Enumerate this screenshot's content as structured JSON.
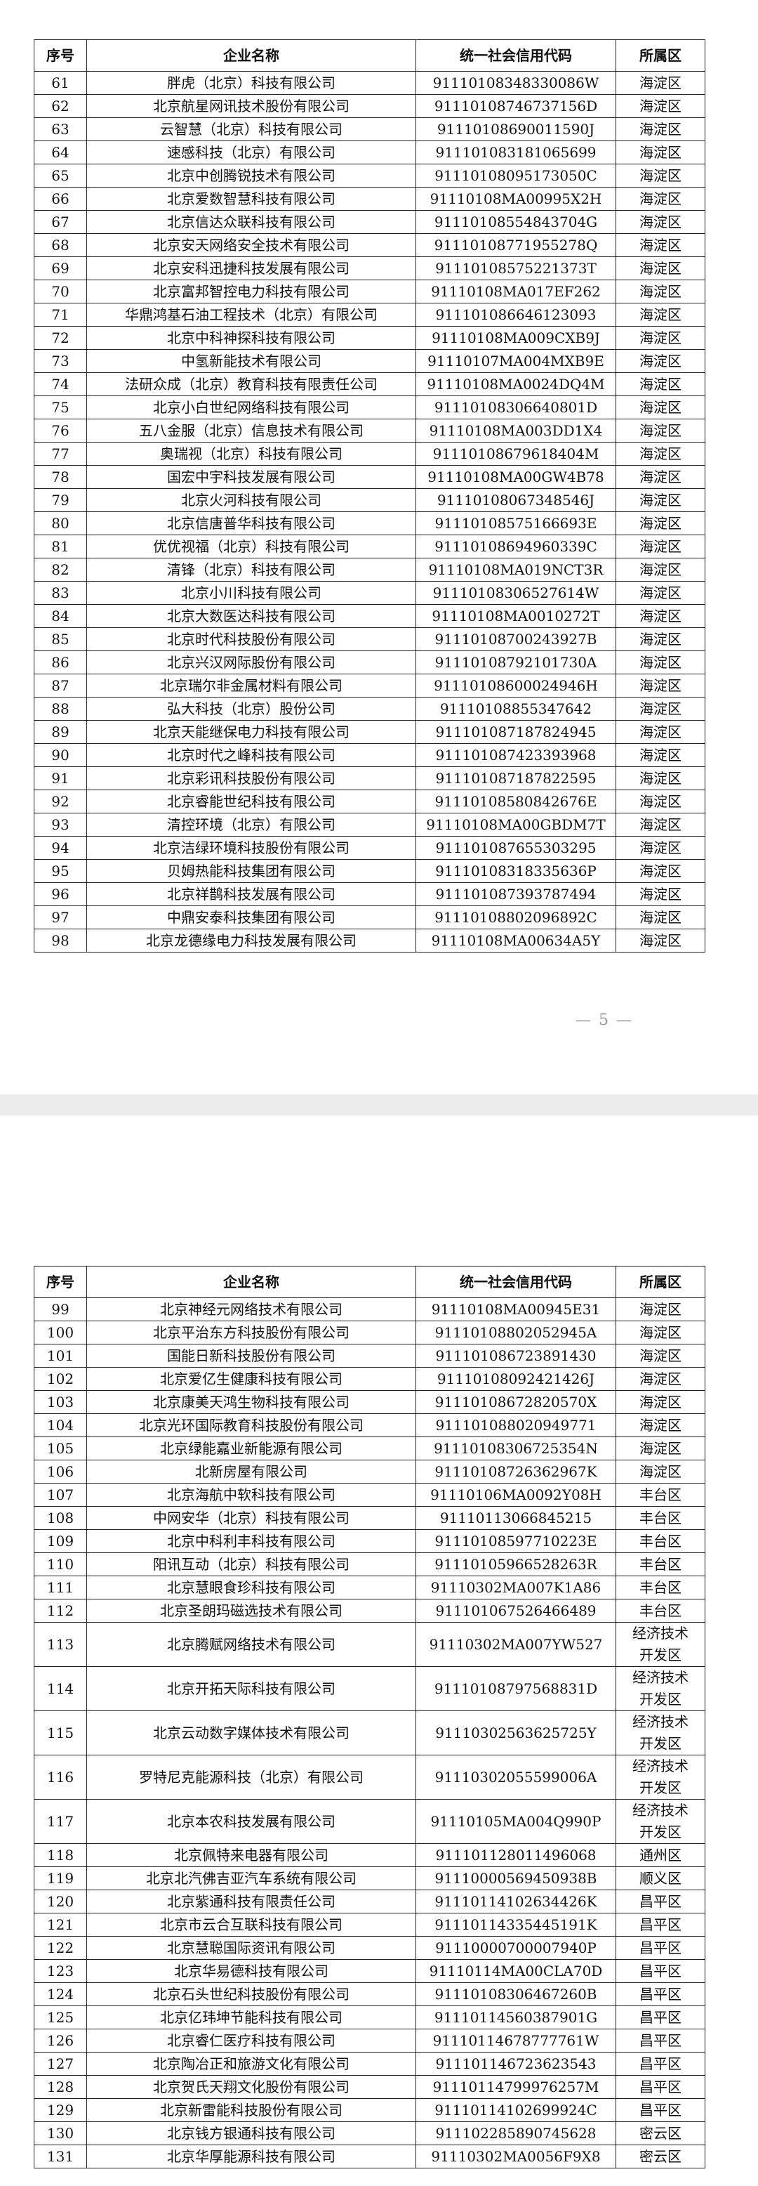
{
  "pages": [
    {
      "table": {
        "header": [
          "序号",
          "企业名称",
          "统一社会信用代码",
          "所属区"
        ],
        "rows": [
          [
            "61",
            "胖虎（北京）科技有限公司",
            "91110108348330086W",
            "海淀区"
          ],
          [
            "62",
            "北京航星网讯技术股份有限公司",
            "91110108746737156D",
            "海淀区"
          ],
          [
            "63",
            "云智慧（北京）科技有限公司",
            "91110108690011590J",
            "海淀区"
          ],
          [
            "64",
            "速感科技（北京）有限公司",
            "911101083181065699",
            "海淀区"
          ],
          [
            "65",
            "北京中创腾锐技术有限公司",
            "91110108095173050C",
            "海淀区"
          ],
          [
            "66",
            "北京爱数智慧科技有限公司",
            "91110108MA00995X2H",
            "海淀区"
          ],
          [
            "67",
            "北京信达众联科技有限公司",
            "91110108554843704G",
            "海淀区"
          ],
          [
            "68",
            "北京安天网络安全技术有限公司",
            "91110108771955278Q",
            "海淀区"
          ],
          [
            "69",
            "北京安科迅捷科技发展有限公司",
            "91110108575221373T",
            "海淀区"
          ],
          [
            "70",
            "北京富邦智控电力科技有限公司",
            "91110108MA017EF262",
            "海淀区"
          ],
          [
            "71",
            "华鼎鸿基石油工程技术（北京）有限公司",
            "911101086646123093",
            "海淀区"
          ],
          [
            "72",
            "北京中科神探科技有限公司",
            "91110108MA009CXB9J",
            "海淀区"
          ],
          [
            "73",
            "中氢新能技术有限公司",
            "91110107MA004MXB9E",
            "海淀区"
          ],
          [
            "74",
            "法研众成（北京）教育科技有限责任公司",
            "91110108MA0024DQ4M",
            "海淀区"
          ],
          [
            "75",
            "北京小白世纪网络科技有限公司",
            "91110108306640801D",
            "海淀区"
          ],
          [
            "76",
            "五八金服（北京）信息技术有限公司",
            "91110108MA003DD1X4",
            "海淀区"
          ],
          [
            "77",
            "奥瑞视（北京）科技有限公司",
            "91110108679618404M",
            "海淀区"
          ],
          [
            "78",
            "国宏中宇科技发展有限公司",
            "91110108MA00GW4B78",
            "海淀区"
          ],
          [
            "79",
            "北京火河科技有限公司",
            "91110108067348546J",
            "海淀区"
          ],
          [
            "80",
            "北京信唐普华科技有限公司",
            "91110108575166693E",
            "海淀区"
          ],
          [
            "81",
            "优优视福（北京）科技有限公司",
            "91110108694960339C",
            "海淀区"
          ],
          [
            "82",
            "清锋（北京）科技有限公司",
            "91110108MA019NCT3R",
            "海淀区"
          ],
          [
            "83",
            "北京小川科技有限公司",
            "91110108306527614W",
            "海淀区"
          ],
          [
            "84",
            "北京大数医达科技有限公司",
            "91110108MA0010272T",
            "海淀区"
          ],
          [
            "85",
            "北京时代科技股份有限公司",
            "91110108700243927B",
            "海淀区"
          ],
          [
            "86",
            "北京兴汉网际股份有限公司",
            "91110108792101730A",
            "海淀区"
          ],
          [
            "87",
            "北京瑞尔非金属材料有限公司",
            "91110108600024946H",
            "海淀区"
          ],
          [
            "88",
            "弘大科技（北京）股份公司",
            "91110108855347642",
            "海淀区"
          ],
          [
            "89",
            "北京天能继保电力科技有限公司",
            "911101087187824945",
            "海淀区"
          ],
          [
            "90",
            "北京时代之峰科技有限公司",
            "911101087423393968",
            "海淀区"
          ],
          [
            "91",
            "北京彩讯科技股份有限公司",
            "911101087187822595",
            "海淀区"
          ],
          [
            "92",
            "北京睿能世纪科技有限公司",
            "91110108580842676E",
            "海淀区"
          ],
          [
            "93",
            "清控环境（北京）有限公司",
            "91110108MA00GBDM7T",
            "海淀区"
          ],
          [
            "94",
            "北京洁绿环境科技股份有限公司",
            "911101087655303295",
            "海淀区"
          ],
          [
            "95",
            "贝姆热能科技集团有限公司",
            "91110108318335636P",
            "海淀区"
          ],
          [
            "96",
            "北京祥鹊科技发展有限公司",
            "911101087393787494",
            "海淀区"
          ],
          [
            "97",
            "中鼎安泰科技集团有限公司",
            "91110108802096892C",
            "海淀区"
          ],
          [
            "98",
            "北京龙德缘电力科技发展有限公司",
            "91110108MA00634A5Y",
            "海淀区"
          ]
        ]
      },
      "page_number": "— 5 —"
    },
    {
      "table": {
        "header": [
          "序号",
          "企业名称",
          "统一社会信用代码",
          "所属区"
        ],
        "rows": [
          [
            "99",
            "北京神经元网络技术有限公司",
            "91110108MA00945E31",
            "海淀区"
          ],
          [
            "100",
            "北京平治东方科技股份有限公司",
            "91110108802052945A",
            "海淀区"
          ],
          [
            "101",
            "国能日新科技股份有限公司",
            "911101086723891430",
            "海淀区"
          ],
          [
            "102",
            "北京爱亿生健康科技有限公司",
            "91110108092421426J",
            "海淀区"
          ],
          [
            "103",
            "北京康美天鸿生物科技有限公司",
            "91110108672820570X",
            "海淀区"
          ],
          [
            "104",
            "北京光环国际教育科技股份有限公司",
            "911101088020949771",
            "海淀区"
          ],
          [
            "105",
            "北京绿能嘉业新能源有限公司",
            "91110108306725354N",
            "海淀区"
          ],
          [
            "106",
            "北新房屋有限公司",
            "91110108726362967K",
            "海淀区"
          ],
          [
            "107",
            "北京海航中软科技有限公司",
            "91110106MA0092Y08H",
            "丰台区"
          ],
          [
            "108",
            "中网安华（北京）科技有限公司",
            "91110113066845215",
            "丰台区"
          ],
          [
            "109",
            "北京中科利丰科技有限公司",
            "91110108597710223E",
            "丰台区"
          ],
          [
            "110",
            "阳讯互动（北京）科技有限公司",
            "91110105966528263R",
            "丰台区"
          ],
          [
            "111",
            "北京慧眼食珍科技有限公司",
            "91110302MA007K1A86",
            "丰台区"
          ],
          [
            "112",
            "北京圣朗玛磁选技术有限公司",
            "911101067526466489",
            "丰台区"
          ],
          [
            "113",
            "北京腾赋网络技术有限公司",
            "91110302MA007YW527",
            "经济技术开发区"
          ],
          [
            "114",
            "北京开拓天际科技有限公司",
            "91110108797568831D",
            "经济技术开发区"
          ],
          [
            "115",
            "北京云动数字媒体技术有限公司",
            "91110302563625725Y",
            "经济技术开发区"
          ],
          [
            "116",
            "罗特尼克能源科技（北京）有限公司",
            "91110302055599006A",
            "经济技术开发区"
          ],
          [
            "117",
            "北京本农科技发展有限公司",
            "91110105MA004Q990P",
            "经济技术开发区"
          ],
          [
            "118",
            "北京佩特来电器有限公司",
            "911101128011496068",
            "通州区"
          ],
          [
            "119",
            "北京北汽佛吉亚汽车系统有限公司",
            "91110000569450938B",
            "顺义区"
          ],
          [
            "120",
            "北京紫通科技有限责任公司",
            "91110114102634426K",
            "昌平区"
          ],
          [
            "121",
            "北京市云合互联科技有限公司",
            "91110114335445191K",
            "昌平区"
          ],
          [
            "122",
            "北京慧聪国际资讯有限公司",
            "91110000700007940P",
            "昌平区"
          ],
          [
            "123",
            "北京华易德科技有限公司",
            "91110114MA00CLA70D",
            "昌平区"
          ],
          [
            "124",
            "北京石头世纪科技股份有限公司",
            "91110108306467260B",
            "昌平区"
          ],
          [
            "125",
            "北京亿玮坤节能科技有限公司",
            "91110114560387901G",
            "昌平区"
          ],
          [
            "126",
            "北京睿仁医疗科技有限公司",
            "91110114678777761W",
            "昌平区"
          ],
          [
            "127",
            "北京陶冶正和旅游文化有限公司",
            "911101146723623543",
            "昌平区"
          ],
          [
            "128",
            "北京贺氏天翔文化股份有限公司",
            "91110114799976257M",
            "昌平区"
          ],
          [
            "129",
            "北京新雷能科技股份有限公司",
            "91110114102699924C",
            "昌平区"
          ],
          [
            "130",
            "北京钱方银通科技有限公司",
            "911102285890745628",
            "密云区"
          ],
          [
            "131",
            "北京华厚能源科技有限公司",
            "91110302MA0056F9X8",
            "密云区"
          ]
        ]
      }
    }
  ]
}
